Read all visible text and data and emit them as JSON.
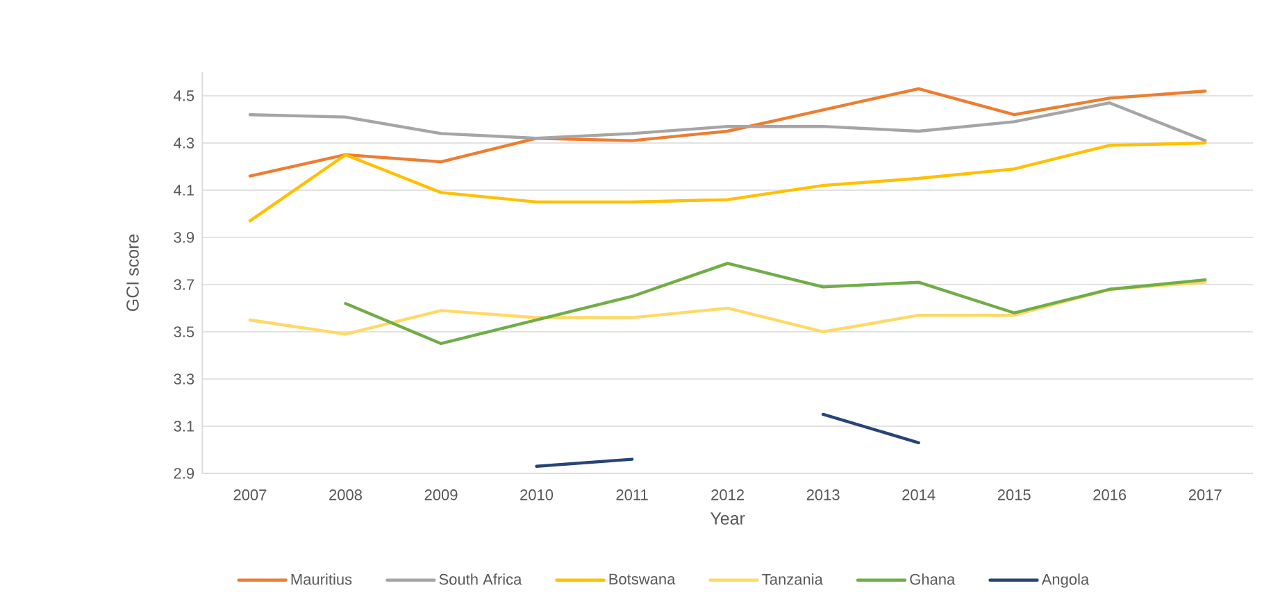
{
  "chart_data": {
    "type": "line",
    "xlabel": "Year",
    "ylabel": "GCI score",
    "categories": [
      "2007",
      "2008",
      "2009",
      "2010",
      "2011",
      "2012",
      "2013",
      "2014",
      "2015",
      "2016",
      "2017"
    ],
    "ylim": [
      2.9,
      4.6
    ],
    "yticks": [
      2.9,
      3.1,
      3.3,
      3.5,
      3.7,
      3.9,
      4.1,
      4.3,
      4.5
    ],
    "grid": "y",
    "legend": "bottom",
    "line_style": "solid",
    "series": [
      {
        "name": "Mauritius",
        "color": "#ed7d31",
        "values": [
          4.16,
          4.25,
          4.22,
          4.32,
          4.31,
          4.35,
          4.44,
          4.53,
          4.42,
          4.49,
          4.52
        ]
      },
      {
        "name": "South Africa",
        "color": "#a5a5a5",
        "values": [
          4.42,
          4.41,
          4.34,
          4.32,
          4.34,
          4.37,
          4.37,
          4.35,
          4.39,
          4.47,
          4.31
        ]
      },
      {
        "name": "Botswana",
        "color": "#ffc000",
        "values": [
          3.97,
          4.25,
          4.09,
          4.05,
          4.05,
          4.06,
          4.12,
          4.15,
          4.19,
          4.29,
          4.3
        ]
      },
      {
        "name": "Tanzania",
        "color": "#ffd966",
        "values": [
          3.55,
          3.49,
          3.59,
          3.56,
          3.56,
          3.6,
          3.5,
          3.57,
          3.57,
          3.68,
          3.71
        ]
      },
      {
        "name": "Ghana",
        "color": "#70ad47",
        "values": [
          null,
          3.62,
          3.45,
          3.55,
          3.65,
          3.79,
          3.69,
          3.71,
          3.58,
          3.68,
          3.72
        ]
      },
      {
        "name": "Angola",
        "color": "#264478",
        "values": [
          null,
          null,
          null,
          2.93,
          2.96,
          null,
          3.15,
          3.03,
          null,
          null,
          null
        ]
      }
    ]
  }
}
